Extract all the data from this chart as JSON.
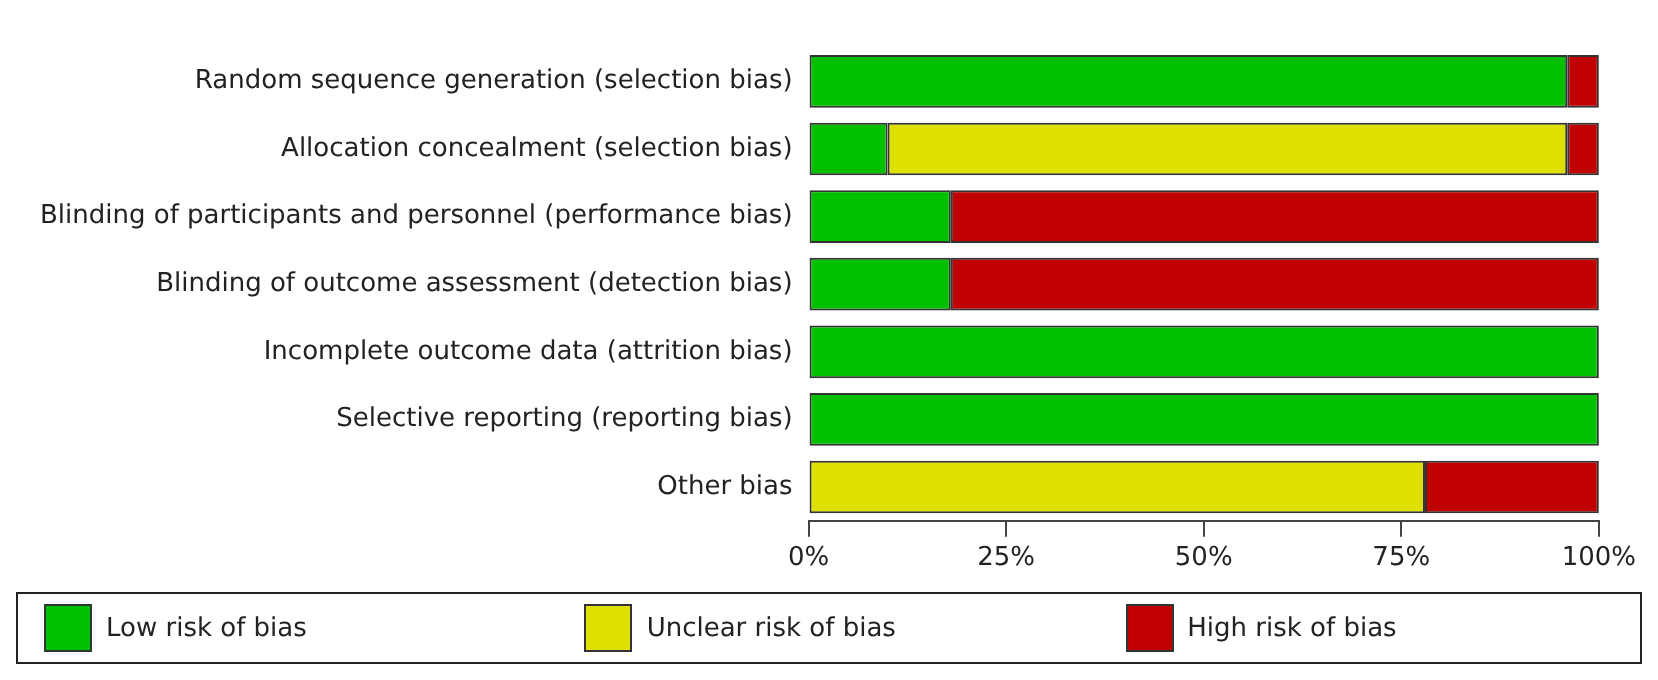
{
  "chart_data": {
    "type": "bar",
    "orientation": "horizontal",
    "stacked": true,
    "categories": [
      "Random sequence generation (selection bias)",
      "Allocation concealment (selection bias)",
      "Blinding of participants and personnel (performance bias)",
      "Blinding of outcome assessment (detection bias)",
      "Incomplete outcome data (attrition bias)",
      "Selective reporting (reporting bias)",
      "Other bias"
    ],
    "series": [
      {
        "name": "Low risk of bias",
        "color": "#00c000",
        "values": [
          96,
          10,
          18,
          18,
          100,
          100,
          null
        ]
      },
      {
        "name": "Unclear risk of bias",
        "color": "#e0e000",
        "values": [
          null,
          86,
          null,
          null,
          null,
          null,
          78
        ]
      },
      {
        "name": "High risk of bias",
        "color": "#c00000",
        "values": [
          4,
          4,
          82,
          82,
          null,
          null,
          22
        ]
      }
    ],
    "xlim": [
      0,
      100
    ],
    "xticks": [
      {
        "value": 0,
        "label": "0%"
      },
      {
        "value": 25,
        "label": "25%"
      },
      {
        "value": 50,
        "label": "50%"
      },
      {
        "value": 75,
        "label": "75%"
      },
      {
        "value": 100,
        "label": "100%"
      }
    ],
    "grid": false,
    "legend": "bottom"
  }
}
